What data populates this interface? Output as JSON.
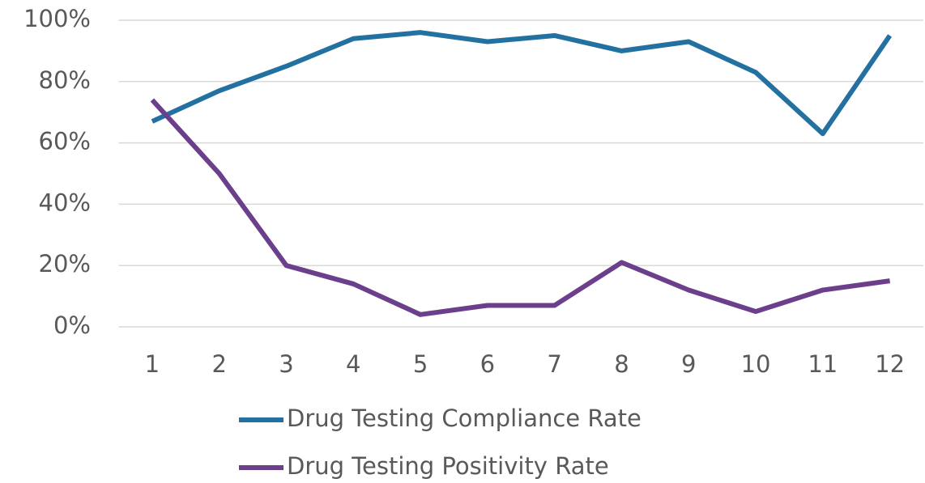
{
  "chart_data": {
    "type": "line",
    "categories": [
      "1",
      "2",
      "3",
      "4",
      "5",
      "6",
      "7",
      "8",
      "9",
      "10",
      "11",
      "12"
    ],
    "series": [
      {
        "name": "Drug Testing Compliance Rate",
        "color": "#2271a0",
        "values": [
          67,
          77,
          85,
          94,
          96,
          93,
          95,
          90,
          93,
          83,
          63,
          95
        ]
      },
      {
        "name": "Drug Testing Positivity Rate",
        "color": "#6b3f8c",
        "values": [
          74,
          50,
          20,
          14,
          4,
          7,
          7,
          21,
          12,
          5,
          12,
          15
        ]
      }
    ],
    "ylim": [
      0,
      100
    ],
    "yticks": [
      {
        "value": 0,
        "label": "0%"
      },
      {
        "value": 20,
        "label": "20%"
      },
      {
        "value": 40,
        "label": "40%"
      },
      {
        "value": 60,
        "label": "60%"
      },
      {
        "value": 80,
        "label": "80%"
      },
      {
        "value": 100,
        "label": "100%"
      }
    ],
    "grid": true,
    "legend": "bottom"
  }
}
